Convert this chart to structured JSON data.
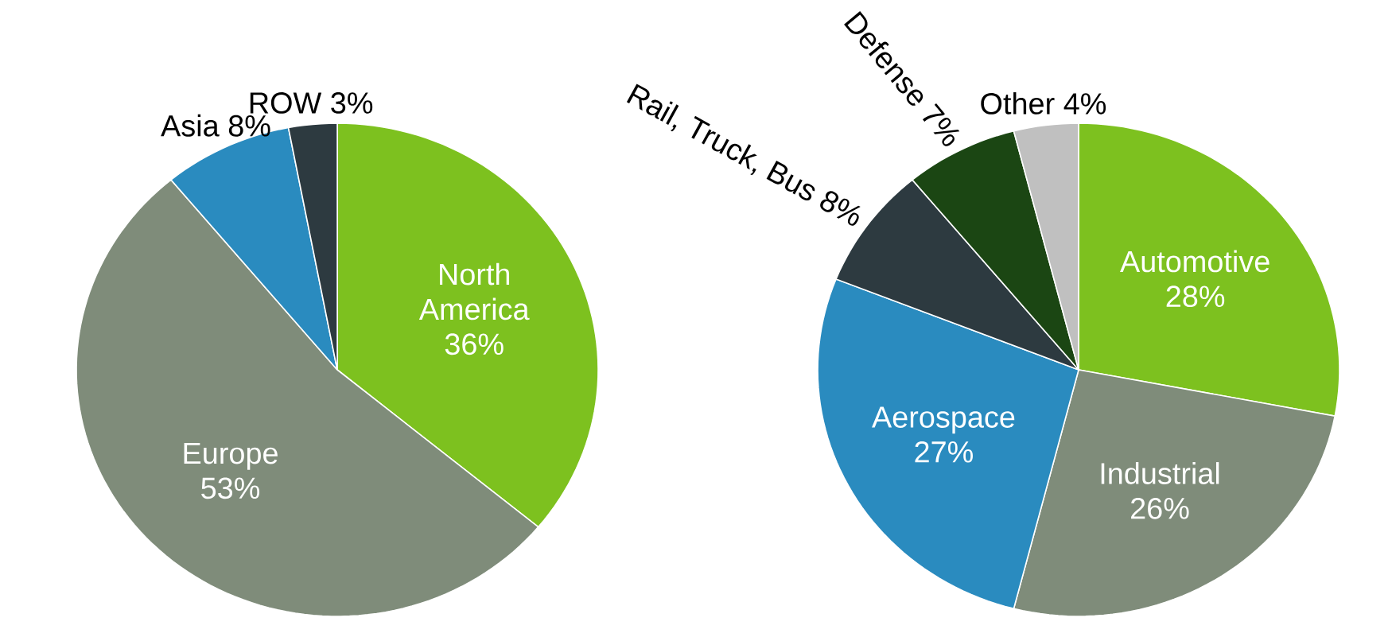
{
  "chart_data": [
    {
      "type": "pie",
      "categories": [
        "North America",
        "Europe",
        "Asia",
        "ROW"
      ],
      "values": [
        36,
        53,
        8,
        3
      ],
      "value_labels": [
        "36%",
        "53%",
        "8%",
        "3%"
      ],
      "colors": [
        "#7dc11f",
        "#7f8c7a",
        "#2a8bbf",
        "#2d3a40"
      ]
    },
    {
      "type": "pie",
      "categories": [
        "Automotive",
        "Industrial",
        "Aerospace",
        "Rail, Truck, Bus",
        "Defense",
        "Other"
      ],
      "values": [
        28,
        26,
        27,
        8,
        7,
        4
      ],
      "value_labels": [
        "28%",
        "26%",
        "27%",
        "8%",
        "7%",
        "4%"
      ],
      "colors": [
        "#7dc11f",
        "#7f8c7a",
        "#2a8bbf",
        "#2d3a40",
        "#1b4613",
        "#c0c0c0"
      ]
    }
  ]
}
